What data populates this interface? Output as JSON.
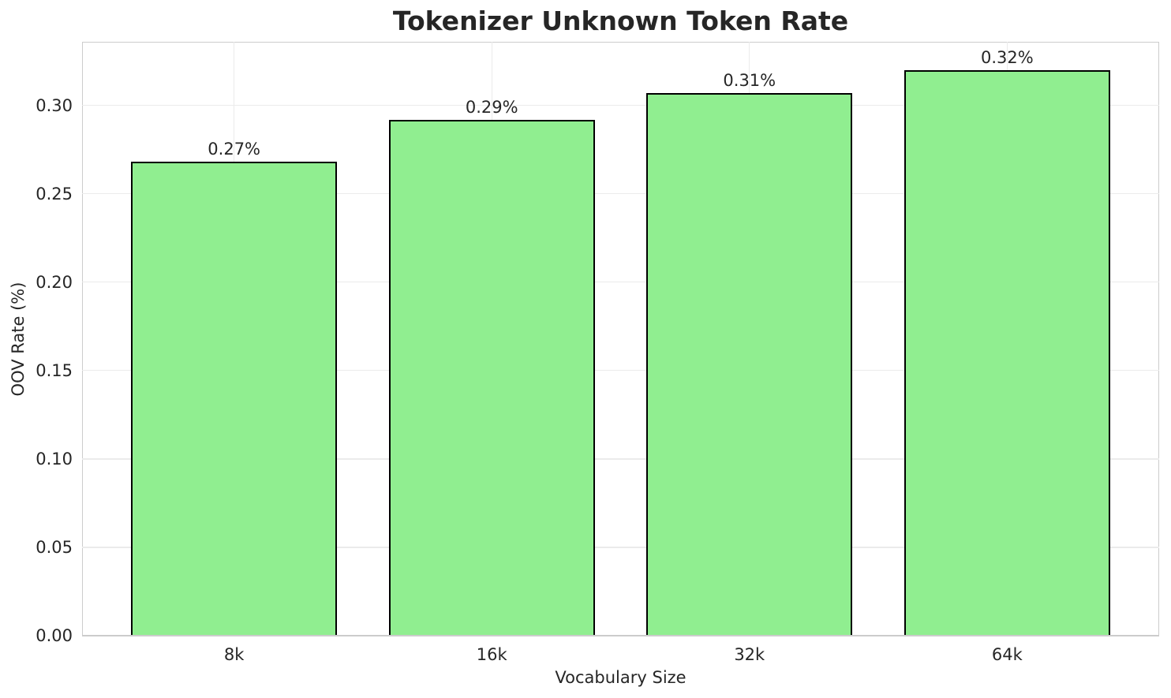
{
  "chart_data": {
    "type": "bar",
    "title": "Tokenizer Unknown Token Rate",
    "xlabel": "Vocabulary Size",
    "ylabel": "OOV Rate (%)",
    "categories": [
      "8k",
      "16k",
      "32k",
      "64k"
    ],
    "values": [
      0.268,
      0.292,
      0.307,
      0.32
    ],
    "bar_labels": [
      "0.27%",
      "0.29%",
      "0.31%",
      "0.32%"
    ],
    "yticks": [
      "0.00",
      "0.05",
      "0.10",
      "0.15",
      "0.20",
      "0.25",
      "0.30"
    ],
    "ytick_values": [
      0.0,
      0.05,
      0.1,
      0.15,
      0.2,
      0.25,
      0.3
    ],
    "ylim": [
      0,
      0.336
    ],
    "xlim": [
      -0.59,
      3.59
    ],
    "bar_width_units": 0.8,
    "grid": true,
    "legend": "none",
    "colors": {
      "bar_fill": "#90EE90",
      "bar_edge": "#000000",
      "text": "#262626",
      "grid": "#ebebeb",
      "spine": "#cccccc",
      "background": "#ffffff"
    }
  }
}
